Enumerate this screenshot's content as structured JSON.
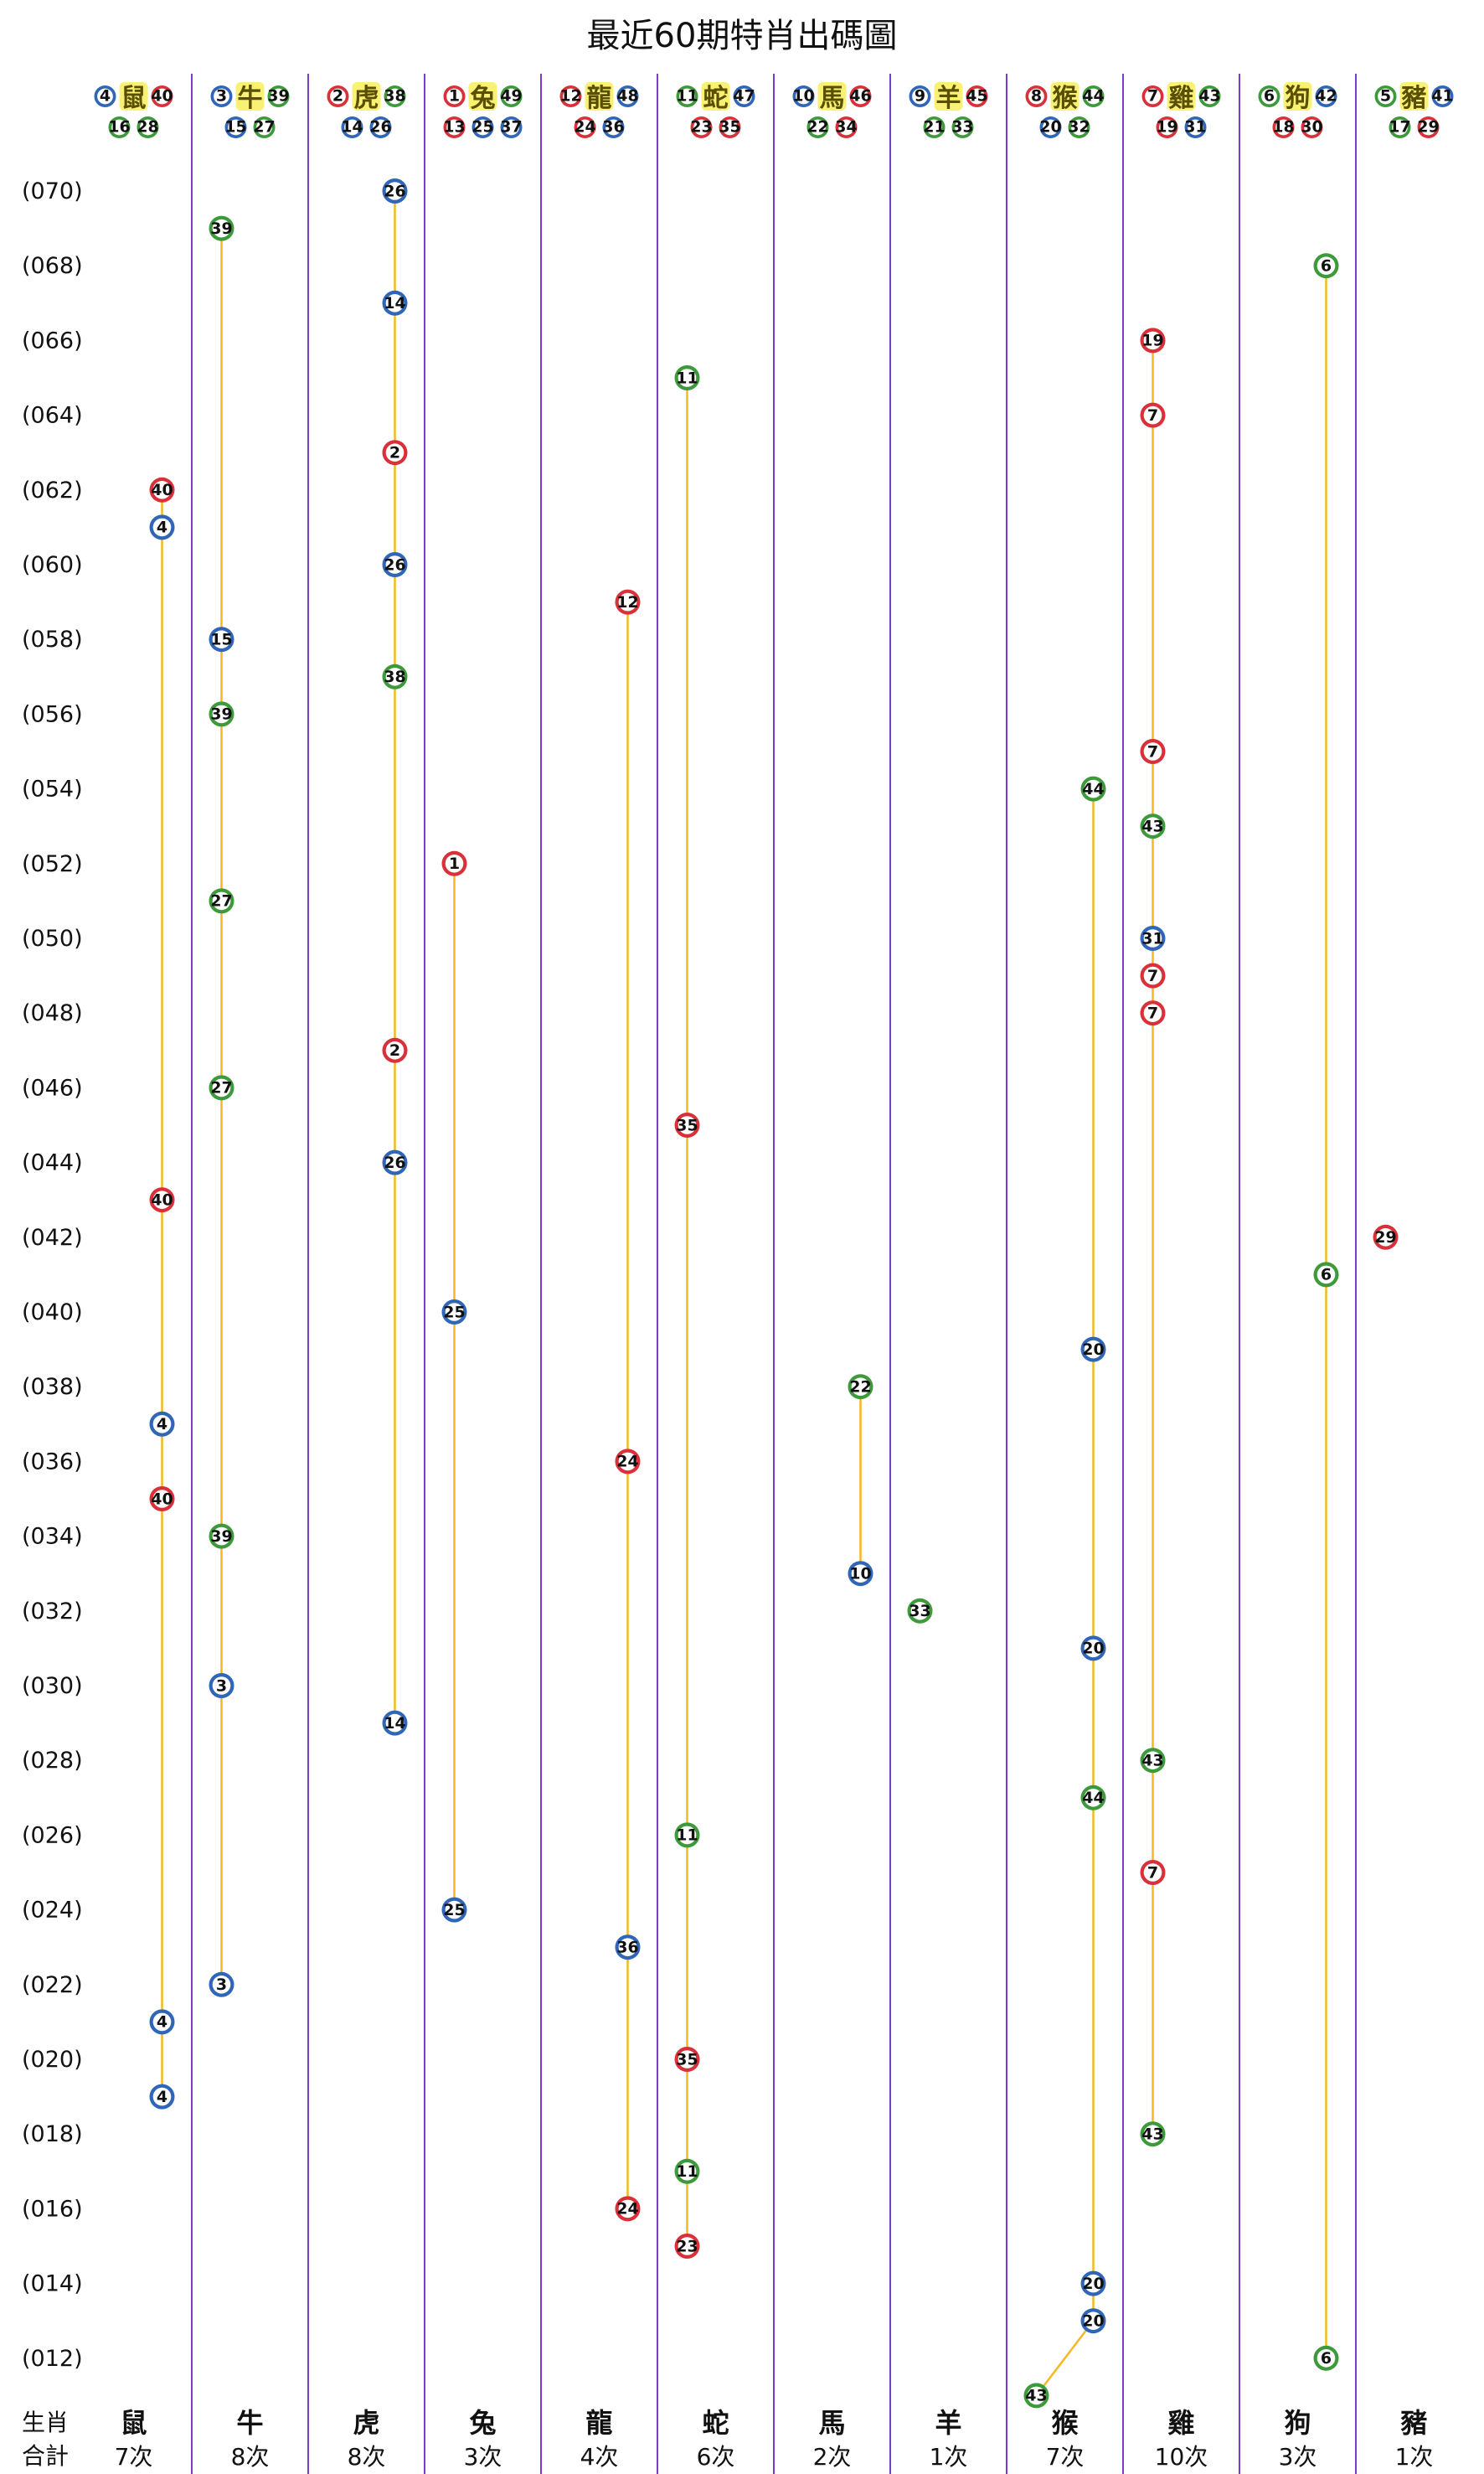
{
  "title": "最近60期特肖出碼圖",
  "colors": {
    "red": "#d9303a",
    "blue": "#2f66b8",
    "green": "#3d9a3a",
    "line": "#f5b820",
    "divider": "#7a3cc4",
    "zodiac_highlight": "#f3e600"
  },
  "chart_data": {
    "type": "line",
    "title": "最近60期特肖出碼圖",
    "ylim": [
      "012",
      "070"
    ],
    "y_tick_labels": [
      "(070)",
      "(068)",
      "(066)",
      "(064)",
      "(062)",
      "(060)",
      "(058)",
      "(056)",
      "(054)",
      "(052)",
      "(050)",
      "(048)",
      "(046)",
      "(044)",
      "(042)",
      "(040)",
      "(038)",
      "(036)",
      "(034)",
      "(032)",
      "(030)",
      "(028)",
      "(026)",
      "(024)",
      "(022)",
      "(020)",
      "(018)",
      "(016)",
      "(014)",
      "(012)"
    ],
    "columns": [
      {
        "zodiac": "鼠",
        "count_label": "7次",
        "header_row1": [
          {
            "n": "4",
            "c": "blue"
          },
          {
            "n": "40",
            "c": "red"
          }
        ],
        "header_row2": [
          {
            "n": "16",
            "c": "green"
          },
          {
            "n": "28",
            "c": "green"
          }
        ],
        "points": [
          {
            "period": 62,
            "n": "40",
            "c": "red"
          },
          {
            "period": 61,
            "n": "4",
            "c": "blue"
          },
          {
            "period": 43,
            "n": "40",
            "c": "red"
          },
          {
            "period": 37,
            "n": "4",
            "c": "blue"
          },
          {
            "period": 35,
            "n": "40",
            "c": "red"
          },
          {
            "period": 21,
            "n": "4",
            "c": "blue"
          },
          {
            "period": 19,
            "n": "4",
            "c": "blue"
          }
        ]
      },
      {
        "zodiac": "牛",
        "count_label": "8次",
        "header_row1": [
          {
            "n": "3",
            "c": "blue"
          },
          {
            "n": "39",
            "c": "green"
          }
        ],
        "header_row2": [
          {
            "n": "15",
            "c": "blue"
          },
          {
            "n": "27",
            "c": "green"
          }
        ],
        "points": [
          {
            "period": 69,
            "n": "39",
            "c": "green"
          },
          {
            "period": 58,
            "n": "15",
            "c": "blue"
          },
          {
            "period": 56,
            "n": "39",
            "c": "green"
          },
          {
            "period": 51,
            "n": "27",
            "c": "green"
          },
          {
            "period": 46,
            "n": "27",
            "c": "green"
          },
          {
            "period": 34,
            "n": "39",
            "c": "green"
          },
          {
            "period": 30,
            "n": "3",
            "c": "blue"
          },
          {
            "period": 22,
            "n": "3",
            "c": "blue"
          }
        ]
      },
      {
        "zodiac": "虎",
        "count_label": "8次",
        "header_row1": [
          {
            "n": "2",
            "c": "red"
          },
          {
            "n": "38",
            "c": "green"
          }
        ],
        "header_row2": [
          {
            "n": "14",
            "c": "blue"
          },
          {
            "n": "26",
            "c": "blue"
          }
        ],
        "points": [
          {
            "period": 70,
            "n": "26",
            "c": "blue"
          },
          {
            "period": 67,
            "n": "14",
            "c": "blue"
          },
          {
            "period": 63,
            "n": "2",
            "c": "red"
          },
          {
            "period": 60,
            "n": "26",
            "c": "blue"
          },
          {
            "period": 57,
            "n": "38",
            "c": "green"
          },
          {
            "period": 47,
            "n": "2",
            "c": "red"
          },
          {
            "period": 44,
            "n": "26",
            "c": "blue"
          },
          {
            "period": 29,
            "n": "14",
            "c": "blue"
          }
        ]
      },
      {
        "zodiac": "兔",
        "count_label": "3次",
        "header_row1": [
          {
            "n": "1",
            "c": "red"
          },
          {
            "n": "49",
            "c": "green"
          }
        ],
        "header_row2": [
          {
            "n": "13",
            "c": "red"
          },
          {
            "n": "25",
            "c": "blue"
          },
          {
            "n": "37",
            "c": "blue"
          }
        ],
        "points": [
          {
            "period": 52,
            "n": "1",
            "c": "red"
          },
          {
            "period": 40,
            "n": "25",
            "c": "blue"
          },
          {
            "period": 24,
            "n": "25",
            "c": "blue"
          }
        ]
      },
      {
        "zodiac": "龍",
        "count_label": "4次",
        "header_row1": [
          {
            "n": "12",
            "c": "red"
          },
          {
            "n": "48",
            "c": "blue"
          }
        ],
        "header_row2": [
          {
            "n": "24",
            "c": "red"
          },
          {
            "n": "36",
            "c": "blue"
          }
        ],
        "points": [
          {
            "period": 59,
            "n": "12",
            "c": "red"
          },
          {
            "period": 36,
            "n": "24",
            "c": "red"
          },
          {
            "period": 23,
            "n": "36",
            "c": "blue"
          },
          {
            "period": 16,
            "n": "24",
            "c": "red"
          }
        ]
      },
      {
        "zodiac": "蛇",
        "count_label": "6次",
        "header_row1": [
          {
            "n": "11",
            "c": "green"
          },
          {
            "n": "47",
            "c": "blue"
          }
        ],
        "header_row2": [
          {
            "n": "23",
            "c": "red"
          },
          {
            "n": "35",
            "c": "red"
          }
        ],
        "points": [
          {
            "period": 65,
            "n": "11",
            "c": "green"
          },
          {
            "period": 45,
            "n": "35",
            "c": "red"
          },
          {
            "period": 26,
            "n": "11",
            "c": "green"
          },
          {
            "period": 20,
            "n": "35",
            "c": "red"
          },
          {
            "period": 17,
            "n": "11",
            "c": "green"
          },
          {
            "period": 15,
            "n": "23",
            "c": "red"
          }
        ]
      },
      {
        "zodiac": "馬",
        "count_label": "2次",
        "header_row1": [
          {
            "n": "10",
            "c": "blue"
          },
          {
            "n": "46",
            "c": "red"
          }
        ],
        "header_row2": [
          {
            "n": "22",
            "c": "green"
          },
          {
            "n": "34",
            "c": "red"
          }
        ],
        "points": [
          {
            "period": 38,
            "n": "22",
            "c": "green"
          },
          {
            "period": 33,
            "n": "10",
            "c": "blue"
          }
        ]
      },
      {
        "zodiac": "羊",
        "count_label": "1次",
        "header_row1": [
          {
            "n": "9",
            "c": "blue"
          },
          {
            "n": "45",
            "c": "red"
          }
        ],
        "header_row2": [
          {
            "n": "21",
            "c": "green"
          },
          {
            "n": "33",
            "c": "green"
          }
        ],
        "points": [
          {
            "period": 32,
            "n": "33",
            "c": "green"
          }
        ]
      },
      {
        "zodiac": "猴",
        "count_label": "7次",
        "header_row1": [
          {
            "n": "8",
            "c": "red"
          },
          {
            "n": "44",
            "c": "green"
          }
        ],
        "header_row2": [
          {
            "n": "20",
            "c": "blue"
          },
          {
            "n": "32",
            "c": "green"
          }
        ],
        "points": [
          {
            "period": 54,
            "n": "44",
            "c": "green"
          },
          {
            "period": 39,
            "n": "20",
            "c": "blue"
          },
          {
            "period": 31,
            "n": "20",
            "c": "blue"
          },
          {
            "period": 27,
            "n": "44",
            "c": "green"
          },
          {
            "period": 14,
            "n": "20",
            "c": "blue"
          },
          {
            "period": 13,
            "n": "20",
            "c": "blue"
          },
          {
            "period": 11,
            "n": "43",
            "c": "green"
          }
        ]
      },
      {
        "zodiac": "雞",
        "count_label": "10次",
        "header_row1": [
          {
            "n": "7",
            "c": "red"
          },
          {
            "n": "43",
            "c": "green"
          }
        ],
        "header_row2": [
          {
            "n": "19",
            "c": "red"
          },
          {
            "n": "31",
            "c": "blue"
          }
        ],
        "points": [
          {
            "period": 66,
            "n": "19",
            "c": "red"
          },
          {
            "period": 64,
            "n": "7",
            "c": "red"
          },
          {
            "period": 55,
            "n": "7",
            "c": "red"
          },
          {
            "period": 53,
            "n": "43",
            "c": "green"
          },
          {
            "period": 50,
            "n": "31",
            "c": "blue"
          },
          {
            "period": 49,
            "n": "7",
            "c": "red"
          },
          {
            "period": 48,
            "n": "7",
            "c": "red"
          },
          {
            "period": 28,
            "n": "43",
            "c": "green"
          },
          {
            "period": 25,
            "n": "7",
            "c": "red"
          },
          {
            "period": 18,
            "n": "43",
            "c": "green"
          }
        ]
      },
      {
        "zodiac": "狗",
        "count_label": "3次",
        "header_row1": [
          {
            "n": "6",
            "c": "green"
          },
          {
            "n": "42",
            "c": "blue"
          }
        ],
        "header_row2": [
          {
            "n": "18",
            "c": "red"
          },
          {
            "n": "30",
            "c": "red"
          }
        ],
        "points": [
          {
            "period": 68,
            "n": "6",
            "c": "green"
          },
          {
            "period": 41,
            "n": "6",
            "c": "green"
          },
          {
            "period": 12,
            "n": "6",
            "c": "green"
          }
        ]
      },
      {
        "zodiac": "豬",
        "count_label": "1次",
        "header_row1": [
          {
            "n": "5",
            "c": "green"
          },
          {
            "n": "41",
            "c": "blue"
          }
        ],
        "header_row2": [
          {
            "n": "17",
            "c": "green"
          },
          {
            "n": "29",
            "c": "red"
          }
        ],
        "points": [
          {
            "period": 42,
            "n": "29",
            "c": "red"
          }
        ]
      }
    ]
  },
  "footer": {
    "zodiac_row_label": "生肖",
    "count_row_label": "合計"
  }
}
